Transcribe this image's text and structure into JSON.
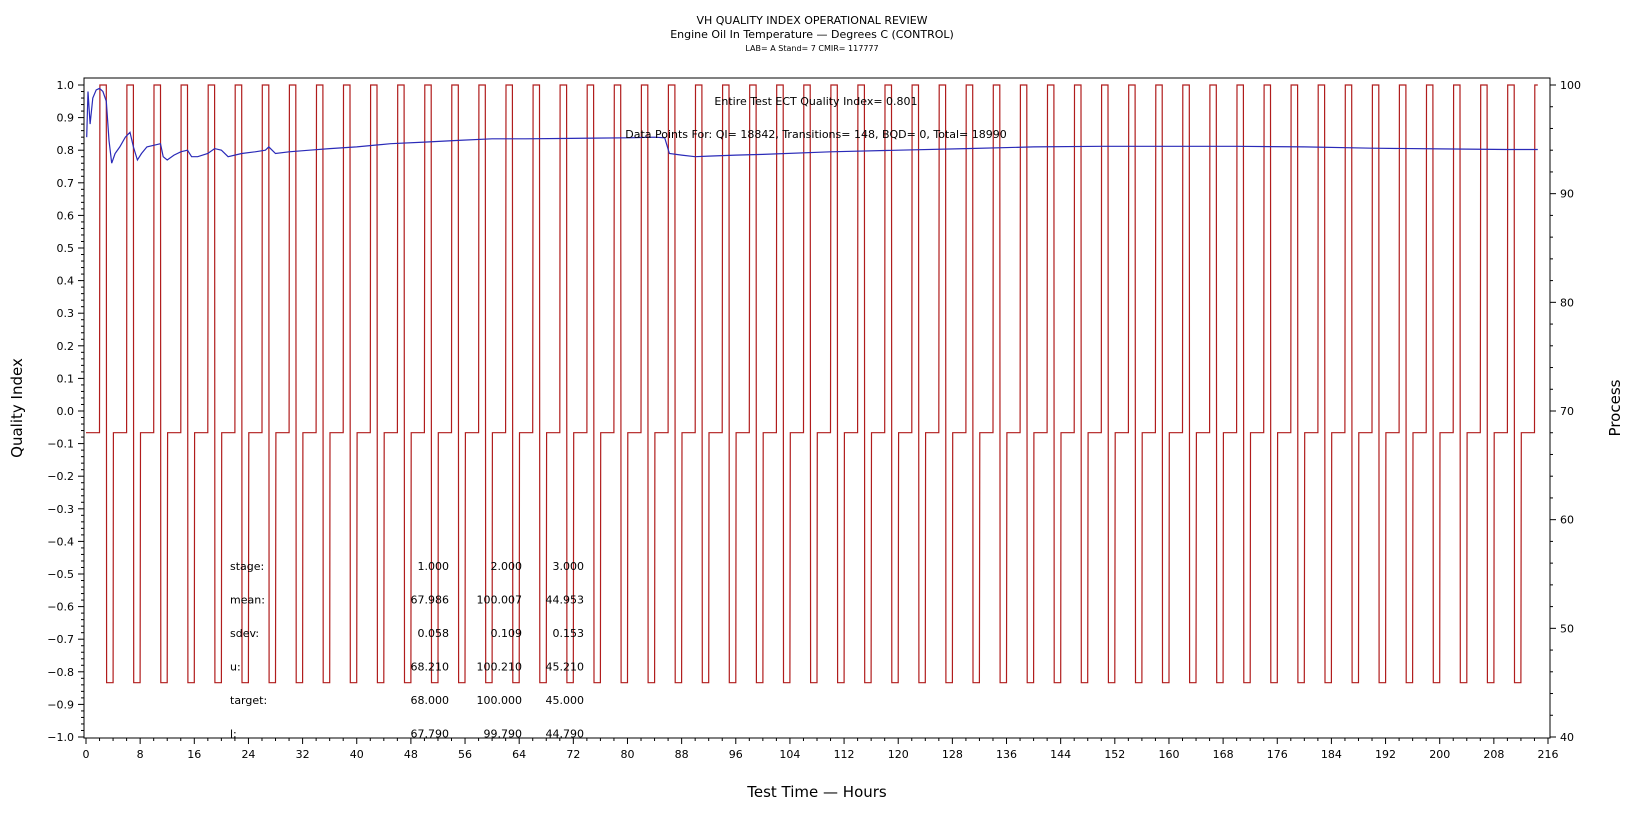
{
  "chart_data": {
    "type": "line",
    "title": "VH QUALITY INDEX OPERATIONAL REVIEW",
    "subtitle": "Engine Oil In Temperature — Degrees C (CONTROL)",
    "subtitle2": "LAB= A Stand= 7 CMIR= 117777",
    "xlabel": "Test Time — Hours",
    "ylabel": "Quality Index",
    "y2label": "Process",
    "xlim": [
      0,
      216
    ],
    "ylim": [
      -1.0,
      1.0
    ],
    "y2lim": [
      40,
      100
    ],
    "x_ticks": [
      "0",
      "8",
      "16",
      "24",
      "32",
      "40",
      "48",
      "56",
      "64",
      "72",
      "80",
      "88",
      "96",
      "104",
      "112",
      "120",
      "128",
      "136",
      "144",
      "152",
      "160",
      "168",
      "176",
      "184",
      "192",
      "200",
      "208",
      "216"
    ],
    "y_ticks": [
      "1.0",
      "0.9",
      "0.8",
      "0.7",
      "0.6",
      "0.5",
      "0.4",
      "0.3",
      "0.2",
      "0.1",
      "0.0",
      "−0.1",
      "−0.2",
      "−0.3",
      "−0.4",
      "−0.5",
      "−0.6",
      "−0.7",
      "−0.8",
      "−0.9",
      "−1.0"
    ],
    "y2_ticks": [
      "100",
      "90",
      "80",
      "70",
      "60",
      "50",
      "40"
    ],
    "annotations": {
      "qi": "Entire Test ECT Quality Index=   0.801",
      "points": "Data Points For: QI= 18842, Transitions=   148, BQD=     0, Total= 18990"
    },
    "series": [
      {
        "role": "quality-index",
        "color": "#2a2ab8",
        "x": [
          0.1,
          0.3,
          0.6,
          1.0,
          1.5,
          2.0,
          2.5,
          3.0,
          3.4,
          3.8,
          4.3,
          5.0,
          5.8,
          6.5,
          7.0,
          7.6,
          8.2,
          9.0,
          10.0,
          11.0,
          11.4,
          12.0,
          13.0,
          14.0,
          15.0,
          15.6,
          16.5,
          18.0,
          19.0,
          20.0,
          21.0,
          23.0,
          25.0,
          26.5,
          27.0,
          28.0,
          30.0,
          33.0,
          36.0,
          40.0,
          45.0,
          50.0,
          55.0,
          60.0,
          65.0,
          70.0,
          75.0,
          80.0,
          84.0,
          85.5,
          86.2,
          88.0,
          90.0,
          92.0,
          96.0,
          100.0,
          110.0,
          120.0,
          130.0,
          140.0,
          150.0,
          160.0,
          170.0,
          180.0,
          190.0,
          200.0,
          210.0,
          214.5
        ],
        "values": [
          0.84,
          0.98,
          0.88,
          0.96,
          0.985,
          0.99,
          0.98,
          0.95,
          0.83,
          0.76,
          0.79,
          0.81,
          0.84,
          0.855,
          0.81,
          0.77,
          0.79,
          0.81,
          0.815,
          0.82,
          0.78,
          0.77,
          0.785,
          0.795,
          0.8,
          0.78,
          0.78,
          0.79,
          0.805,
          0.8,
          0.78,
          0.79,
          0.795,
          0.8,
          0.81,
          0.79,
          0.795,
          0.8,
          0.805,
          0.81,
          0.82,
          0.825,
          0.83,
          0.835,
          0.835,
          0.836,
          0.837,
          0.838,
          0.84,
          0.838,
          0.79,
          0.785,
          0.78,
          0.782,
          0.785,
          0.787,
          0.795,
          0.8,
          0.805,
          0.81,
          0.812,
          0.812,
          0.812,
          0.81,
          0.806,
          0.804,
          0.802,
          0.802
        ]
      },
      {
        "role": "process",
        "color": "#b01c1c",
        "axis": "right",
        "levels": {
          "high": 100.0,
          "mid": 68.0,
          "low": 45.0
        },
        "x_start": 0.0,
        "x_end": 214.5,
        "cycle_hours": 4.0,
        "stage_hours": [
          2.0,
          1.0,
          1.0
        ],
        "first_stage": "mid"
      }
    ],
    "stats_table": {
      "row_labels": [
        "stage:",
        "mean:",
        "sdev:",
        "u:",
        "target:",
        "l:"
      ],
      "rows": [
        [
          "1.000",
          "2.000",
          "3.000"
        ],
        [
          "67.986",
          "100.007",
          "44.953"
        ],
        [
          "0.058",
          "0.109",
          "0.153"
        ],
        [
          "68.210",
          "100.210",
          "45.210"
        ],
        [
          "68.000",
          "100.000",
          "45.000"
        ],
        [
          "67.790",
          "99.790",
          "44.790"
        ]
      ]
    },
    "grid": false,
    "legend": "none"
  }
}
